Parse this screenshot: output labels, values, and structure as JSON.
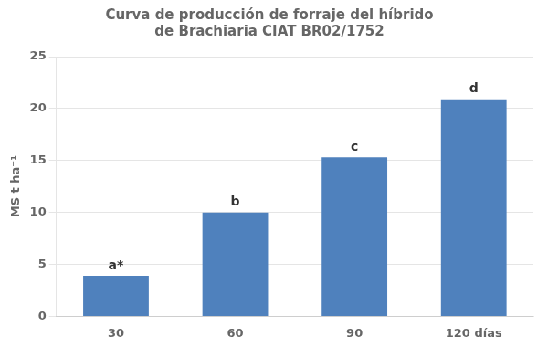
{
  "chart_data": {
    "type": "bar",
    "title": "Curva de producción de forraje del híbrido\nde Brachiaria CIAT BR02/1752",
    "ylabel": "MS t ha⁻¹",
    "categories": [
      "30",
      "60",
      "90",
      "120 días"
    ],
    "values": [
      3.9,
      10.0,
      15.3,
      20.9
    ],
    "color": "#4F81BD",
    "annotations": [
      "a*",
      "b",
      "c",
      "d"
    ],
    "ylim": [
      0,
      25
    ],
    "yticks": [
      0,
      5,
      10,
      15,
      20,
      25
    ],
    "grid": true
  }
}
